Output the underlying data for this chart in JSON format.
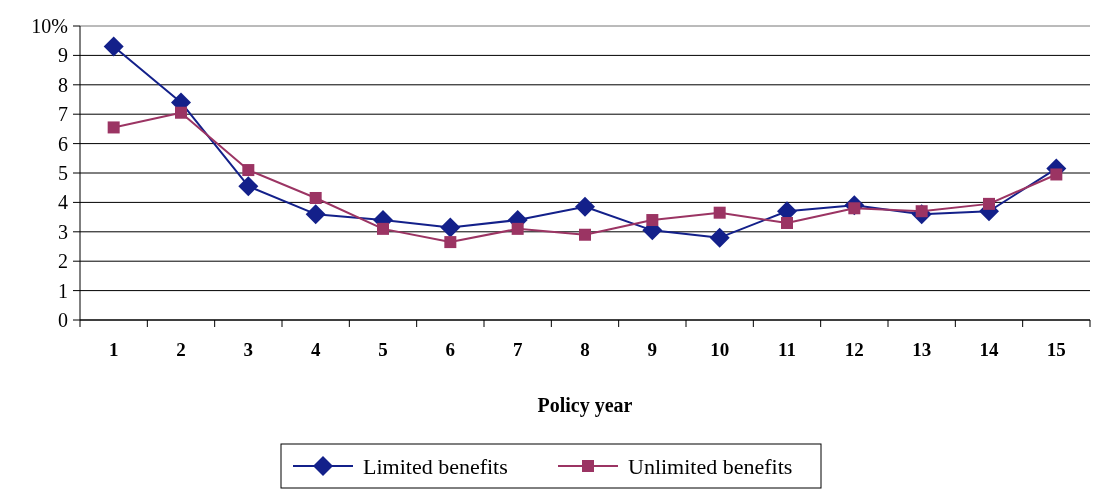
{
  "chart_data": {
    "type": "line",
    "xlabel": "Policy year",
    "categories": [
      "1",
      "2",
      "3",
      "4",
      "5",
      "6",
      "7",
      "8",
      "9",
      "10",
      "11",
      "12",
      "13",
      "14",
      "15"
    ],
    "series": [
      {
        "name": "Limited benefits",
        "color": "#13208a",
        "marker": "diamond",
        "values": [
          9.3,
          7.4,
          4.55,
          3.6,
          3.4,
          3.15,
          3.4,
          3.85,
          3.05,
          2.8,
          3.7,
          3.9,
          3.6,
          3.7,
          5.15
        ]
      },
      {
        "name": "Unlimited benefits",
        "color": "#9b3463",
        "marker": "square",
        "values": [
          6.55,
          7.05,
          5.1,
          4.15,
          3.1,
          2.65,
          3.1,
          2.9,
          3.4,
          3.65,
          3.3,
          3.8,
          3.7,
          3.95,
          4.95
        ]
      }
    ],
    "ylim": [
      0,
      10
    ],
    "yticks": [
      0,
      1,
      2,
      3,
      4,
      5,
      6,
      7,
      8,
      9,
      {
        "value": 10,
        "label": "10%"
      }
    ],
    "grid": "y",
    "legend": "bottom",
    "line_style": "solid"
  }
}
